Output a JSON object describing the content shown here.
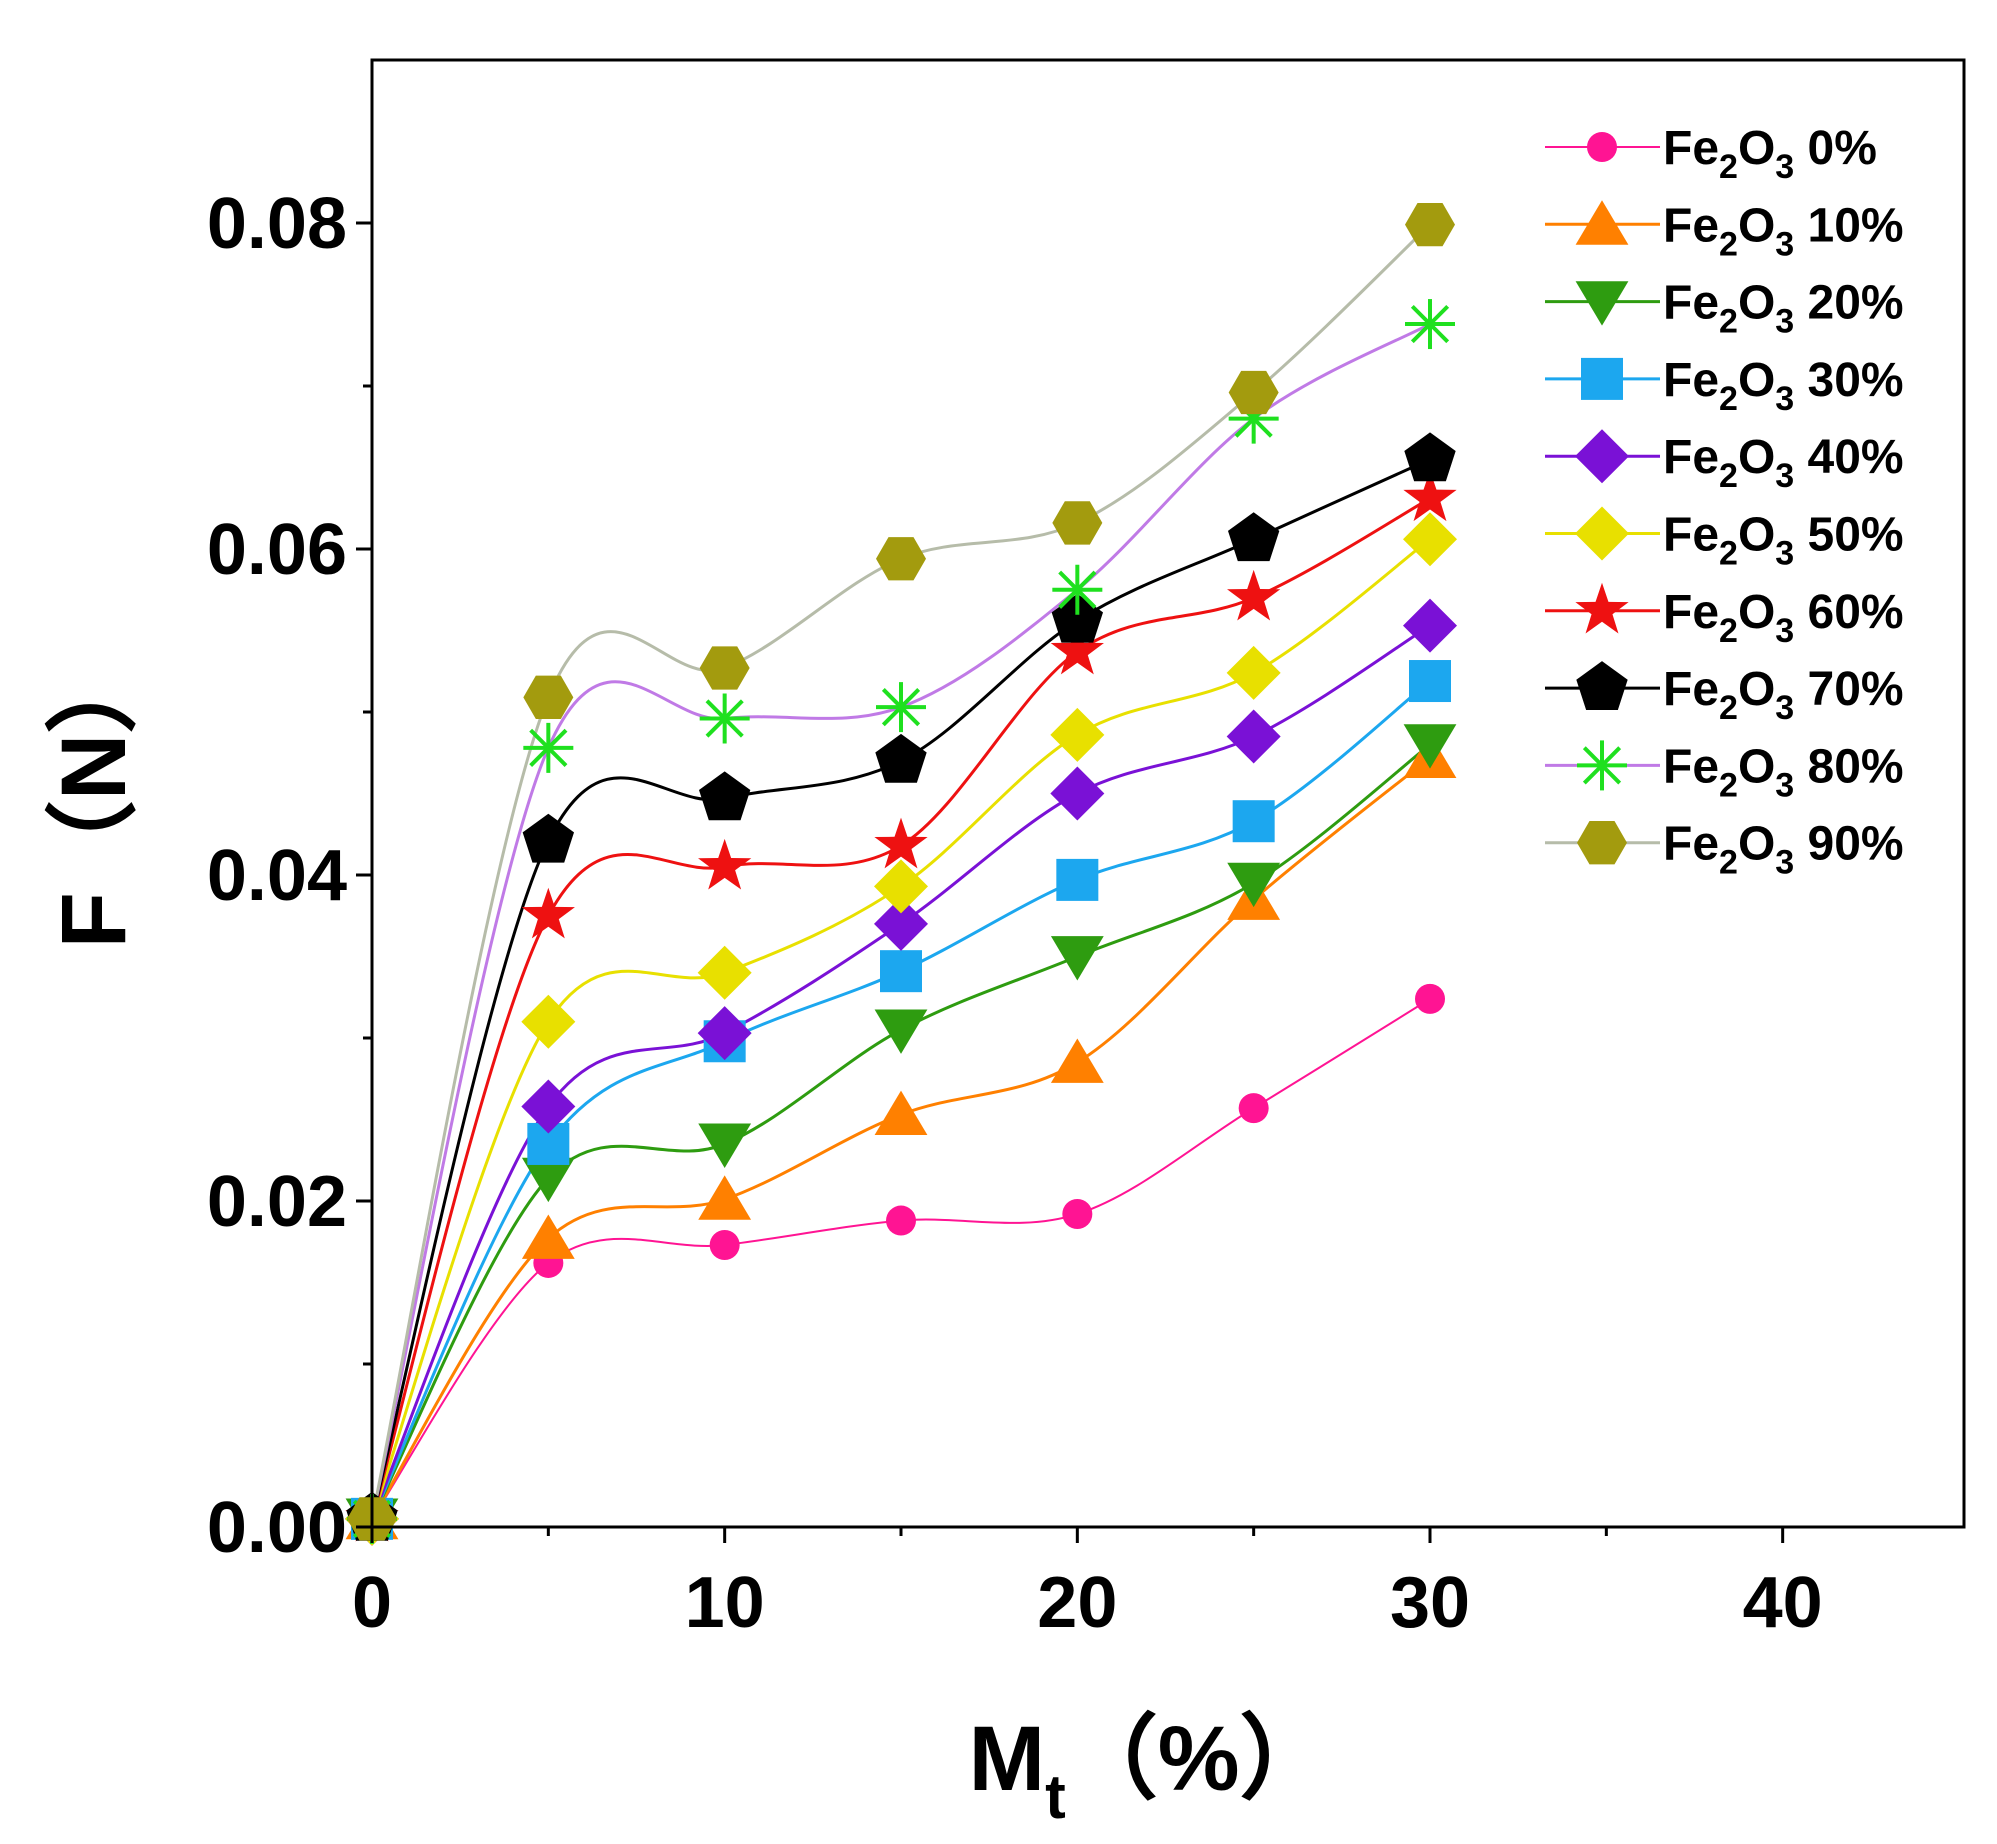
{
  "chart_data": {
    "type": "line",
    "title": "",
    "xlabel_main": "M",
    "xlabel_sub": "t",
    "xlabel_unit": "（%）",
    "ylabel_main": "F",
    "ylabel_unit": "（N）",
    "xlim": [
      0,
      45
    ],
    "ylim": [
      0,
      0.09
    ],
    "x_ticks": [
      0,
      10,
      20,
      30,
      40
    ],
    "x_tick_labels": [
      "0",
      "10",
      "20",
      "30",
      "40"
    ],
    "y_ticks": [
      0,
      0.02,
      0.04,
      0.06,
      0.08
    ],
    "y_tick_labels": [
      "0.00",
      "0.02",
      "0.04",
      "0.06",
      "0.08"
    ],
    "grid": false,
    "legend_position": "top-right",
    "x": [
      0,
      5,
      10,
      15,
      20,
      25,
      30
    ],
    "series": [
      {
        "label_main": "Fe",
        "label_sub1": "2",
        "label_mid": "O",
        "label_sub2": "3",
        "label_pct": " 0%",
        "color": "#ff1493",
        "marker": "circle",
        "values": [
          0.0005,
          0.0162,
          0.0173,
          0.0188,
          0.0192,
          0.0257,
          0.0324
        ]
      },
      {
        "label_main": "Fe",
        "label_sub1": "2",
        "label_mid": "O",
        "label_sub2": "3",
        "label_pct": " 10%",
        "color": "#ff8000",
        "marker": "triangle-up",
        "values": [
          0.0005,
          0.0177,
          0.0201,
          0.0253,
          0.0285,
          0.0385,
          0.0472
        ]
      },
      {
        "label_main": "Fe",
        "label_sub1": "2",
        "label_mid": "O",
        "label_sub2": "3",
        "label_pct": " 20%",
        "color": "#2e9c10",
        "marker": "triangle-down",
        "values": [
          0.0005,
          0.0214,
          0.0235,
          0.0305,
          0.035,
          0.0395,
          0.048
        ]
      },
      {
        "label_main": "Fe",
        "label_sub1": "2",
        "label_mid": "O",
        "label_sub2": "3",
        "label_pct": " 30%",
        "color": "#1ca7ef",
        "marker": "square",
        "values": [
          0.0005,
          0.0235,
          0.0298,
          0.0341,
          0.0397,
          0.0433,
          0.0519
        ]
      },
      {
        "label_main": "Fe",
        "label_sub1": "2",
        "label_mid": "O",
        "label_sub2": "3",
        "label_pct": " 40%",
        "color": "#7a11d6",
        "marker": "diamond",
        "values": [
          0.0005,
          0.0258,
          0.0303,
          0.037,
          0.045,
          0.0485,
          0.0553
        ]
      },
      {
        "label_main": "Fe",
        "label_sub1": "2",
        "label_mid": "O",
        "label_sub2": "3",
        "label_pct": " 50%",
        "color": "#e8e000",
        "marker": "diamond",
        "values": [
          0.0005,
          0.031,
          0.034,
          0.0393,
          0.0486,
          0.0524,
          0.0606
        ]
      },
      {
        "label_main": "Fe",
        "label_sub1": "2",
        "label_mid": "O",
        "label_sub2": "3",
        "label_pct": " 60%",
        "color": "#ee1111",
        "marker": "star",
        "values": [
          0.0005,
          0.0375,
          0.0405,
          0.0418,
          0.0537,
          0.057,
          0.0631
        ]
      },
      {
        "label_main": "Fe",
        "label_sub1": "2",
        "label_mid": "O",
        "label_sub2": "3",
        "label_pct": " 70%",
        "color": "#000000",
        "marker": "pentagon",
        "values": [
          0.0005,
          0.0421,
          0.0447,
          0.047,
          0.0556,
          0.0606,
          0.0655
        ]
      },
      {
        "label_main": "Fe",
        "label_sub1": "2",
        "label_mid": "O",
        "label_sub2": "3",
        "label_pct": " 80%",
        "color": "#1fe01f",
        "line_color": "#c07ae6",
        "marker": "asterisk",
        "values": [
          0.0005,
          0.0478,
          0.0496,
          0.0503,
          0.0575,
          0.068,
          0.0738
        ]
      },
      {
        "label_main": "Fe",
        "label_sub1": "2",
        "label_mid": "O",
        "label_sub2": "3",
        "label_pct": " 90%",
        "color": "#a39b0e",
        "line_color": "#b6bca9",
        "marker": "hexagon",
        "values": [
          0.0005,
          0.0509,
          0.0527,
          0.0594,
          0.0616,
          0.0696,
          0.0799
        ]
      }
    ]
  }
}
